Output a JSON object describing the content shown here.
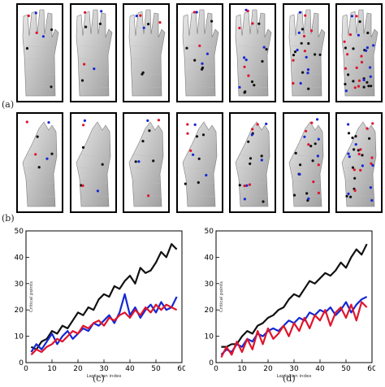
{
  "panel_labels": {
    "a": "(a)",
    "b": "(b)",
    "c": "(c)",
    "d": "(d)"
  },
  "colors": {
    "black": "#111111",
    "blue": "#1428d4",
    "red": "#e0142a",
    "mesh": "#bdbdbd"
  },
  "row_a": {
    "frame_count": 7,
    "point_density": [
      [
        3,
        2,
        2
      ],
      [
        3,
        2,
        2
      ],
      [
        3,
        2,
        2
      ],
      [
        5,
        3,
        2
      ],
      [
        7,
        5,
        5
      ],
      [
        9,
        7,
        6
      ],
      [
        13,
        9,
        11
      ]
    ]
  },
  "row_b": {
    "frame_count": 7,
    "point_density": [
      [
        3,
        2,
        2
      ],
      [
        3,
        2,
        2
      ],
      [
        4,
        2,
        2
      ],
      [
        5,
        3,
        3
      ],
      [
        7,
        5,
        4
      ],
      [
        9,
        6,
        6
      ],
      [
        12,
        9,
        9
      ]
    ]
  },
  "chart_data": [
    {
      "type": "line",
      "label": "(c)",
      "xlabel": "Laplacian index",
      "ylabel": "Critical points",
      "xlim": [
        0,
        60
      ],
      "ylim": [
        0,
        50
      ],
      "xticks": [
        0,
        10,
        20,
        30,
        40,
        50,
        60
      ],
      "yticks": [
        0,
        10,
        20,
        30,
        40,
        50
      ],
      "x": [
        2,
        4,
        6,
        8,
        10,
        12,
        14,
        16,
        18,
        20,
        22,
        24,
        26,
        28,
        30,
        32,
        34,
        36,
        38,
        40,
        42,
        44,
        46,
        48,
        50,
        52,
        54,
        56,
        58
      ],
      "series": [
        {
          "color": "#111111",
          "values": [
            6,
            5,
            8,
            9,
            12,
            11,
            14,
            13,
            16,
            19,
            18,
            21,
            20,
            24,
            26,
            25,
            29,
            28,
            31,
            33,
            30,
            36,
            34,
            35,
            38,
            42,
            40,
            45,
            43
          ]
        },
        {
          "color": "#1428d4",
          "values": [
            4,
            7,
            5,
            8,
            11,
            7,
            10,
            12,
            9,
            11,
            13,
            12,
            15,
            14,
            16,
            18,
            15,
            19,
            26,
            18,
            21,
            17,
            20,
            22,
            19,
            23,
            20,
            21,
            25
          ]
        },
        {
          "color": "#e0142a",
          "values": [
            3,
            5,
            4,
            6,
            7,
            9,
            8,
            10,
            12,
            11,
            14,
            13,
            15,
            16,
            14,
            17,
            16,
            18,
            19,
            17,
            20,
            18,
            21,
            19,
            22,
            20,
            22,
            21,
            20
          ]
        }
      ]
    },
    {
      "type": "line",
      "label": "(d)",
      "xlabel": "Laplacian index",
      "ylabel": "Critical points",
      "xlim": [
        0,
        60
      ],
      "ylim": [
        0,
        50
      ],
      "xticks": [
        0,
        10,
        20,
        30,
        40,
        50,
        60
      ],
      "yticks": [
        0,
        10,
        20,
        30,
        40,
        50
      ],
      "x": [
        2,
        4,
        6,
        8,
        10,
        12,
        14,
        16,
        18,
        20,
        22,
        24,
        26,
        28,
        30,
        32,
        34,
        36,
        38,
        40,
        42,
        44,
        46,
        48,
        50,
        52,
        54,
        56,
        58
      ],
      "series": [
        {
          "color": "#111111",
          "values": [
            6,
            6,
            7,
            7,
            10,
            12,
            11,
            14,
            15,
            17,
            18,
            20,
            21,
            24,
            26,
            25,
            28,
            31,
            30,
            32,
            34,
            33,
            35,
            38,
            36,
            40,
            43,
            41,
            45
          ]
        },
        {
          "color": "#1428d4",
          "values": [
            3,
            5,
            4,
            7,
            6,
            9,
            8,
            11,
            10,
            12,
            13,
            12,
            14,
            16,
            15,
            17,
            16,
            19,
            18,
            20,
            19,
            21,
            18,
            20,
            23,
            19,
            22,
            24,
            25
          ]
        },
        {
          "color": "#e0142a",
          "values": [
            2,
            6,
            3,
            8,
            4,
            9,
            5,
            12,
            7,
            13,
            9,
            11,
            14,
            10,
            15,
            12,
            17,
            13,
            18,
            16,
            20,
            14,
            19,
            21,
            17,
            22,
            16,
            23,
            21
          ]
        }
      ]
    }
  ]
}
